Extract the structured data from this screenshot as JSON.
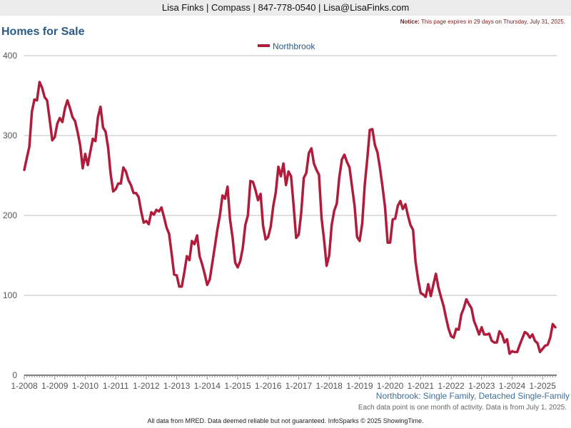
{
  "header": {
    "contact": "Lisa Finks | Compass | 847-778-0540 | Lisa@LisaFinks.com"
  },
  "notice": {
    "label": "Notice:",
    "text": "This page expires in 29 days on Thursday, July 31, 2025."
  },
  "page_title": "Homes for Sale",
  "footer": {
    "subtitle": "Northbrook: Single Family, Detached Single-Family",
    "note": "Each data point is one month of activity. Data is from July 1, 2025.",
    "credit": "All data from MRED. Data deemed reliable but not guaranteed. InfoSparks © 2025 ShowingTime."
  },
  "colors": {
    "series": "#b01c3b",
    "title": "#2b5b84",
    "grid": "#bdbdbd"
  },
  "chart_data": {
    "type": "line",
    "title": "Homes for Sale",
    "xlabel": "",
    "ylabel": "",
    "xlim": [
      "1-2008",
      "6-2025"
    ],
    "ylim": [
      0,
      400
    ],
    "yticks": [
      "0",
      "100",
      "200",
      "300",
      "400"
    ],
    "xticks": [
      "1-2008",
      "1-2009",
      "1-2010",
      "1-2011",
      "1-2012",
      "1-2013",
      "1-2014",
      "1-2015",
      "1-2016",
      "1-2017",
      "1-2018",
      "1-2019",
      "1-2020",
      "1-2021",
      "1-2022",
      "1-2023",
      "1-2024",
      "1-2025"
    ],
    "grid": true,
    "legend_position": "top-center",
    "series": [
      {
        "name": "Northbrook",
        "color": "#b01c3b",
        "x": [
          "1-2008",
          "2-2008",
          "3-2008",
          "4-2008",
          "5-2008",
          "6-2008",
          "7-2008",
          "8-2008",
          "9-2008",
          "10-2008",
          "11-2008",
          "12-2008",
          "1-2009",
          "2-2009",
          "3-2009",
          "4-2009",
          "5-2009",
          "6-2009",
          "7-2009",
          "8-2009",
          "9-2009",
          "10-2009",
          "11-2009",
          "12-2009",
          "1-2010",
          "2-2010",
          "3-2010",
          "4-2010",
          "5-2010",
          "6-2010",
          "7-2010",
          "8-2010",
          "9-2010",
          "10-2010",
          "11-2010",
          "12-2010",
          "1-2011",
          "2-2011",
          "3-2011",
          "4-2011",
          "5-2011",
          "6-2011",
          "7-2011",
          "8-2011",
          "9-2011",
          "10-2011",
          "11-2011",
          "12-2011",
          "1-2012",
          "2-2012",
          "3-2012",
          "4-2012",
          "5-2012",
          "6-2012",
          "7-2012",
          "8-2012",
          "9-2012",
          "10-2012",
          "11-2012",
          "12-2012",
          "1-2013",
          "2-2013",
          "3-2013",
          "4-2013",
          "5-2013",
          "6-2013",
          "7-2013",
          "8-2013",
          "9-2013",
          "10-2013",
          "11-2013",
          "12-2013",
          "1-2014",
          "2-2014",
          "3-2014",
          "4-2014",
          "5-2014",
          "6-2014",
          "7-2014",
          "8-2014",
          "9-2014",
          "10-2014",
          "11-2014",
          "12-2014",
          "1-2015",
          "2-2015",
          "3-2015",
          "4-2015",
          "5-2015",
          "6-2015",
          "7-2015",
          "8-2015",
          "9-2015",
          "10-2015",
          "11-2015",
          "12-2015",
          "1-2016",
          "2-2016",
          "3-2016",
          "4-2016",
          "5-2016",
          "6-2016",
          "7-2016",
          "8-2016",
          "9-2016",
          "10-2016",
          "11-2016",
          "12-2016",
          "1-2017",
          "2-2017",
          "3-2017",
          "4-2017",
          "5-2017",
          "6-2017",
          "7-2017",
          "8-2017",
          "9-2017",
          "10-2017",
          "11-2017",
          "12-2017",
          "1-2018",
          "2-2018",
          "3-2018",
          "4-2018",
          "5-2018",
          "6-2018",
          "7-2018",
          "8-2018",
          "9-2018",
          "10-2018",
          "11-2018",
          "12-2018",
          "1-2019",
          "2-2019",
          "3-2019",
          "4-2019",
          "5-2019",
          "6-2019",
          "7-2019",
          "8-2019",
          "9-2019",
          "10-2019",
          "11-2019",
          "12-2019",
          "1-2020",
          "2-2020",
          "3-2020",
          "4-2020",
          "5-2020",
          "6-2020",
          "7-2020",
          "8-2020",
          "9-2020",
          "10-2020",
          "11-2020",
          "12-2020",
          "1-2021",
          "2-2021",
          "3-2021",
          "4-2021",
          "5-2021",
          "6-2021",
          "7-2021",
          "8-2021",
          "9-2021",
          "10-2021",
          "11-2021",
          "12-2021",
          "1-2022",
          "2-2022",
          "3-2022",
          "4-2022",
          "5-2022",
          "6-2022",
          "7-2022",
          "8-2022",
          "9-2022",
          "10-2022",
          "11-2022",
          "12-2022",
          "1-2023",
          "2-2023",
          "3-2023",
          "4-2023",
          "5-2023",
          "6-2023",
          "7-2023",
          "8-2023",
          "9-2023",
          "10-2023",
          "11-2023",
          "12-2023",
          "1-2024",
          "2-2024",
          "3-2024",
          "4-2024",
          "5-2024",
          "6-2024",
          "7-2024",
          "8-2024",
          "9-2024",
          "10-2024",
          "11-2024",
          "12-2024",
          "1-2025",
          "2-2025",
          "3-2025",
          "4-2025",
          "5-2025",
          "6-2025"
        ],
        "values": [
          257,
          272,
          286,
          330,
          345,
          344,
          367,
          360,
          348,
          344,
          320,
          294,
          298,
          315,
          322,
          317,
          334,
          344,
          334,
          323,
          318,
          304,
          288,
          259,
          277,
          263,
          280,
          296,
          293,
          323,
          336,
          310,
          305,
          285,
          252,
          230,
          233,
          240,
          240,
          260,
          255,
          244,
          238,
          228,
          228,
          223,
          205,
          191,
          193,
          189,
          204,
          201,
          207,
          205,
          210,
          198,
          185,
          177,
          152,
          126,
          125,
          111,
          111,
          129,
          149,
          144,
          168,
          164,
          175,
          149,
          139,
          127,
          113,
          120,
          140,
          161,
          182,
          200,
          225,
          221,
          236,
          195,
          172,
          141,
          135,
          143,
          159,
          188,
          200,
          243,
          242,
          232,
          219,
          227,
          187,
          170,
          173,
          186,
          212,
          229,
          261,
          249,
          265,
          238,
          255,
          249,
          213,
          172,
          176,
          203,
          247,
          253,
          278,
          284,
          265,
          257,
          251,
          197,
          169,
          137,
          150,
          188,
          206,
          215,
          248,
          270,
          276,
          267,
          260,
          236,
          212,
          173,
          168,
          190,
          238,
          271,
          307,
          308,
          288,
          279,
          259,
          236,
          210,
          166,
          166,
          195,
          196,
          212,
          218,
          208,
          214,
          200,
          188,
          182,
          142,
          120,
          103,
          101,
          98,
          114,
          99,
          113,
          127,
          110,
          98,
          87,
          72,
          58,
          49,
          47,
          58,
          57,
          76,
          84,
          95,
          89,
          84,
          68,
          60,
          51,
          60,
          51,
          51,
          52,
          43,
          41,
          41,
          55,
          51,
          41,
          45,
          27,
          30,
          29,
          29,
          38,
          46,
          54,
          52,
          47,
          51,
          43,
          40,
          29,
          33,
          37,
          38,
          47,
          64,
          60
        ]
      }
    ]
  }
}
